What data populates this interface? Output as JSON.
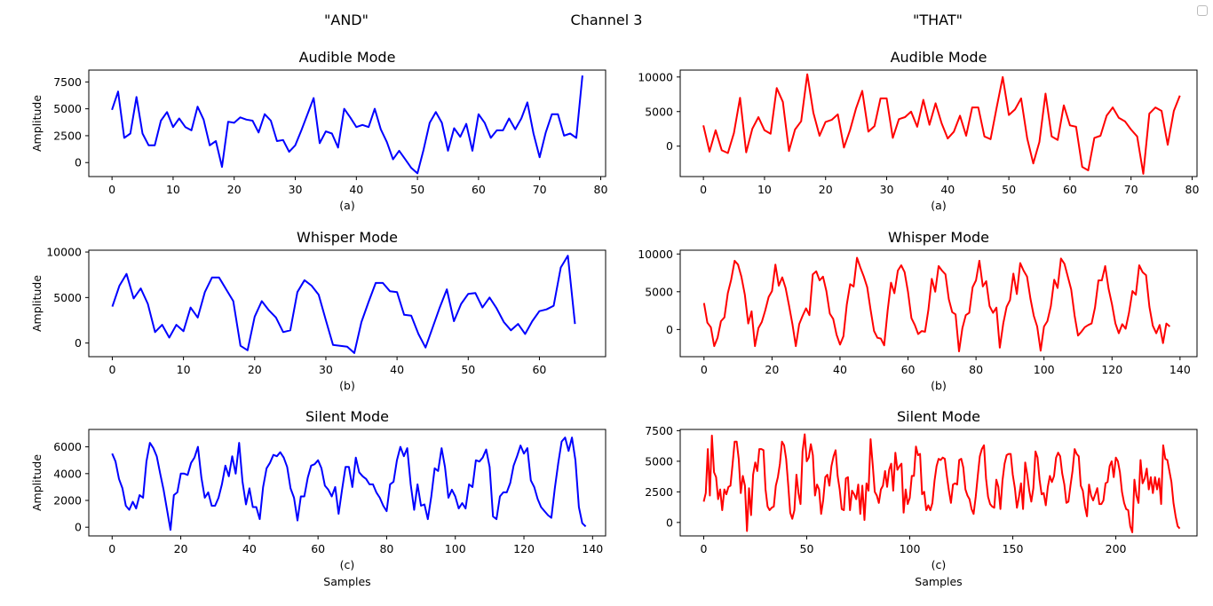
{
  "figure": {
    "suptitle": "Channel 3",
    "left_header": "\"AND\"",
    "right_header": "\"THAT\""
  },
  "chart_data": [
    {
      "id": "and-audible",
      "type": "line",
      "title": "Audible Mode",
      "xlabel": "(a)",
      "xlabel2": "",
      "ylabel": "Amplitude",
      "color": "#0000ff",
      "xlim": [
        -3.8,
        80.8
      ],
      "ylim": [
        -1300,
        8600
      ],
      "xticks": [
        0,
        10,
        20,
        30,
        40,
        50,
        60,
        70,
        80
      ],
      "yticks": [
        0,
        2500,
        5000,
        7500
      ],
      "y": [
        4900,
        6600,
        2300,
        2700,
        6100,
        2700,
        1600,
        1600,
        3900,
        4700,
        3300,
        4100,
        3300,
        3000,
        5200,
        4000,
        1600,
        2000,
        -400,
        3800,
        3700,
        4200,
        4000,
        3900,
        2800,
        4500,
        3900,
        2000,
        2100,
        1000,
        1600,
        3000,
        4500,
        6000,
        1800,
        2900,
        2700,
        1400,
        5000,
        4200,
        3300,
        3500,
        3300,
        5000,
        3100,
        1900,
        300,
        1100,
        300,
        -500,
        -1000,
        1200,
        3700,
        4700,
        3700,
        1100,
        3200,
        2400,
        3600,
        1100,
        4500,
        3700,
        2300,
        3000,
        3000,
        4100,
        3100,
        4100,
        5600,
        2700,
        500,
        2800,
        4500,
        4500,
        2500,
        2700,
        2300,
        8100
      ]
    },
    {
      "id": "and-whisper",
      "type": "line",
      "title": "Whisper Mode",
      "xlabel": "(b)",
      "xlabel2": "",
      "ylabel": "Amplitude",
      "color": "#0000ff",
      "xlim": [
        -3.3,
        69.3
      ],
      "ylim": [
        -1500,
        10200
      ],
      "xticks": [
        0,
        10,
        20,
        30,
        40,
        50,
        60
      ],
      "yticks": [
        0,
        5000,
        10000
      ],
      "y": [
        4000,
        6300,
        7600,
        4900,
        6000,
        4300,
        1200,
        2000,
        600,
        2000,
        1300,
        3900,
        2800,
        5600,
        7200,
        7200,
        5900,
        4600,
        -300,
        -800,
        2900,
        4600,
        3600,
        2800,
        1200,
        1400,
        5600,
        6900,
        6300,
        5300,
        2500,
        -200,
        -300,
        -400,
        -1100,
        2300,
        4500,
        6600,
        6600,
        5700,
        5600,
        3100,
        3000,
        1000,
        -500,
        1700,
        3900,
        5900,
        2400,
        4300,
        5400,
        5500,
        3900,
        5000,
        3800,
        2300,
        1400,
        2100,
        1000,
        2400,
        3500,
        3700,
        4100,
        8300,
        9600,
        2100
      ]
    },
    {
      "id": "and-silent",
      "type": "line",
      "title": "Silent Mode",
      "xlabel": "(c)",
      "xlabel2": "Samples",
      "ylabel": "Amplitude",
      "color": "#0000ff",
      "xlim": [
        -6.8,
        143.8
      ],
      "ylim": [
        -650,
        7300
      ],
      "xticks": [
        0,
        20,
        40,
        60,
        80,
        100,
        120,
        140
      ],
      "yticks": [
        0,
        2000,
        4000,
        6000
      ],
      "y": [
        5500,
        4900,
        3600,
        2900,
        1600,
        1300,
        1900,
        1400,
        2400,
        2200,
        4900,
        6300,
        5900,
        5300,
        4000,
        2800,
        1300,
        -200,
        2400,
        2600,
        4000,
        4000,
        3900,
        4800,
        5200,
        6000,
        3700,
        2200,
        2600,
        1600,
        1600,
        2200,
        3200,
        4600,
        3800,
        5300,
        4000,
        6300,
        3400,
        1700,
        2900,
        1500,
        1500,
        600,
        3000,
        4400,
        4800,
        5400,
        5300,
        5600,
        5200,
        4500,
        2900,
        2200,
        500,
        2300,
        2300,
        3700,
        4600,
        4700,
        5000,
        4400,
        3100,
        2800,
        2300,
        3000,
        1000,
        2800,
        4500,
        4500,
        3000,
        5200,
        4100,
        3800,
        3600,
        3200,
        3200,
        2600,
        2200,
        1600,
        1200,
        3200,
        3400,
        5000,
        6000,
        5300,
        5900,
        3200,
        1300,
        3200,
        1600,
        1700,
        600,
        2300,
        4400,
        4200,
        5900,
        4500,
        2200,
        2800,
        2300,
        1400,
        1800,
        1400,
        3200,
        3000,
        5000,
        4900,
        5200,
        5800,
        4500,
        800,
        600,
        2300,
        2600,
        2600,
        3300,
        4600,
        5300,
        6100,
        5500,
        5900,
        3500,
        3000,
        2100,
        1500,
        1200,
        900,
        700,
        2900,
        4800,
        6400,
        6700,
        5700,
        6700,
        5000,
        1500,
        300,
        50
      ]
    },
    {
      "id": "that-audible",
      "type": "line",
      "title": "Audible Mode",
      "xlabel": "(a)",
      "xlabel2": "",
      "ylabel": "",
      "color": "#ff0000",
      "xlim": [
        -3.8,
        80.8
      ],
      "ylim": [
        -4400,
        11000
      ],
      "xticks": [
        0,
        10,
        20,
        30,
        40,
        50,
        60,
        70,
        80
      ],
      "yticks": [
        0,
        5000,
        10000
      ],
      "y": [
        3000,
        -800,
        2300,
        -600,
        -1000,
        1900,
        7000,
        -900,
        2500,
        4200,
        2300,
        1800,
        8400,
        6400,
        -700,
        2400,
        3600,
        10400,
        4800,
        1500,
        3500,
        3800,
        4600,
        -200,
        2300,
        5500,
        8000,
        2100,
        2900,
        6900,
        6900,
        1200,
        3900,
        4200,
        5000,
        2800,
        6700,
        3100,
        6200,
        3300,
        1100,
        2100,
        4400,
        1500,
        5600,
        5600,
        1400,
        1000,
        5600,
        10000,
        4500,
        5300,
        6900,
        1100,
        -2500,
        600,
        7600,
        1400,
        900,
        5900,
        3000,
        2800,
        -3000,
        -3500,
        1200,
        1500,
        4400,
        5600,
        4100,
        3600,
        2400,
        1400,
        -4000,
        4700,
        5600,
        5100,
        200,
        5100,
        7300
      ]
    },
    {
      "id": "that-whisper",
      "type": "line",
      "title": "Whisper Mode",
      "xlabel": "(b)",
      "xlabel2": "",
      "ylabel": "",
      "color": "#ff0000",
      "xlim": [
        -7,
        145
      ],
      "ylim": [
        -3600,
        10500
      ],
      "xticks": [
        0,
        20,
        40,
        60,
        80,
        100,
        120,
        140
      ],
      "yticks": [
        0,
        5000,
        10000
      ],
      "y": [
        3500,
        900,
        300,
        -2200,
        -1100,
        1100,
        1600,
        4800,
        6600,
        9100,
        8600,
        7000,
        4600,
        800,
        2400,
        -2200,
        200,
        1000,
        2500,
        4300,
        5100,
        8600,
        5800,
        6900,
        5500,
        3200,
        700,
        -2200,
        700,
        1800,
        2800,
        1900,
        7300,
        7700,
        6500,
        7000,
        5100,
        2100,
        1400,
        -700,
        -2000,
        -900,
        3300,
        6000,
        5700,
        9500,
        8200,
        7000,
        5600,
        2600,
        -200,
        -1100,
        -1200,
        -2100,
        2500,
        6200,
        4800,
        7800,
        8500,
        7600,
        5000,
        1500,
        600,
        -600,
        -200,
        -300,
        2600,
        6700,
        5000,
        8400,
        7800,
        7300,
        4000,
        2300,
        2000,
        -2900,
        200,
        1900,
        2200,
        5600,
        6500,
        9100,
        5700,
        6400,
        3100,
        2200,
        2900,
        -2400,
        800,
        3000,
        3900,
        7400,
        4700,
        8800,
        7800,
        7000,
        4100,
        1800,
        400,
        -2800,
        400,
        1100,
        3100,
        6600,
        5500,
        9400,
        8700,
        7000,
        5300,
        1800,
        -800,
        -300,
        300,
        600,
        800,
        2900,
        6500,
        6500,
        8400,
        5400,
        3300,
        800,
        -500,
        700,
        100,
        2200,
        5100,
        4600,
        8500,
        7600,
        7200,
        3000,
        500,
        -500,
        600,
        -1800,
        800,
        400
      ]
    },
    {
      "id": "that-silent",
      "type": "line",
      "title": "Silent Mode",
      "xlabel": "(c)",
      "xlabel2": "Samples",
      "ylabel": "",
      "color": "#ff0000",
      "xlim": [
        -11.4,
        239.4
      ],
      "ylim": [
        -1100,
        7600
      ],
      "xticks": [
        0,
        50,
        100,
        150,
        200
      ],
      "yticks": [
        0,
        2500,
        5000,
        7500
      ],
      "y": [
        1700,
        2400,
        6000,
        2200,
        7100,
        4100,
        3700,
        1900,
        2700,
        1000,
        2700,
        2300,
        2900,
        3000,
        4700,
        6600,
        6600,
        5200,
        2400,
        3800,
        3000,
        -700,
        2800,
        600,
        3900,
        4900,
        4200,
        6000,
        6000,
        5900,
        2700,
        1300,
        1000,
        1200,
        1300,
        3000,
        3700,
        4800,
        6600,
        6300,
        5200,
        3100,
        800,
        300,
        1000,
        3900,
        2400,
        1500,
        5800,
        7200,
        5000,
        5300,
        6400,
        5500,
        2200,
        3100,
        2700,
        700,
        1800,
        3700,
        3900,
        3000,
        4600,
        5400,
        5900,
        3800,
        2700,
        1100,
        1000,
        3600,
        3700,
        1000,
        2600,
        2300,
        1900,
        3100,
        700,
        3000,
        200,
        3200,
        2600,
        6800,
        4800,
        2500,
        2200,
        1600,
        2700,
        3000,
        4200,
        2900,
        4300,
        4800,
        2600,
        5700,
        4300,
        4600,
        4800,
        800,
        2700,
        1500,
        2000,
        3800,
        3800,
        6200,
        5500,
        5600,
        2300,
        2500,
        1000,
        1400,
        1000,
        1600,
        3400,
        4600,
        5200,
        5100,
        5300,
        5200,
        3800,
        2600,
        1600,
        3100,
        3200,
        3100,
        5100,
        5200,
        4500,
        2700,
        2200,
        1900,
        1100,
        700,
        2100,
        3800,
        5400,
        6000,
        6300,
        3600,
        2100,
        1500,
        1300,
        1200,
        3500,
        2900,
        1100,
        3400,
        4800,
        5500,
        5600,
        5600,
        3900,
        2800,
        1200,
        2100,
        3200,
        1100,
        4900,
        3900,
        2600,
        1700,
        2800,
        5800,
        5300,
        3500,
        2300,
        2400,
        1400,
        2900,
        3800,
        3300,
        3800,
        5300,
        5700,
        5400,
        4000,
        3100,
        1600,
        1700,
        3000,
        4200,
        6000,
        5600,
        5400,
        3000,
        2600,
        1300,
        500,
        3100,
        2200,
        1800,
        2300,
        2800,
        1500,
        1500,
        1800,
        3200,
        3300,
        4600,
        5000,
        3700,
        5300,
        5000,
        4100,
        2500,
        1600,
        1100,
        1000,
        -300,
        -800,
        3500,
        2200,
        1600,
        5100,
        3200,
        3600,
        4400,
        2700,
        3700,
        2400,
        3700,
        2700,
        3600,
        1500,
        6300,
        5200,
        5100,
        4200,
        3300,
        1600,
        500,
        -300,
        -500
      ]
    }
  ]
}
